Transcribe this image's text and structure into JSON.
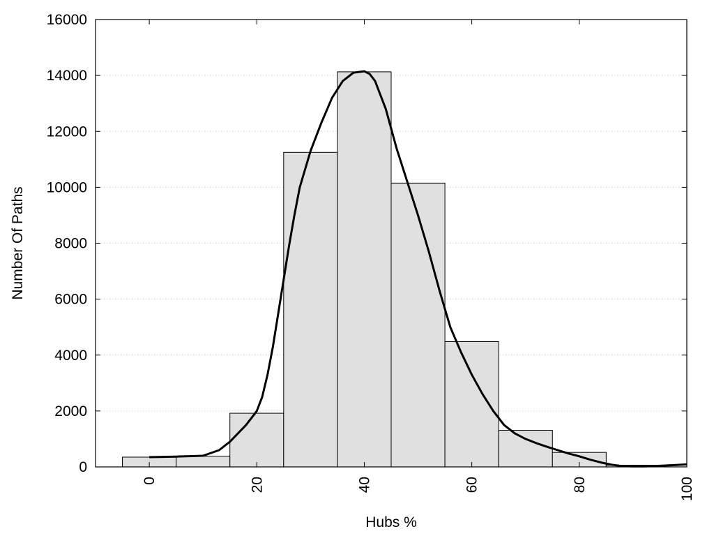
{
  "chart_data": {
    "type": "bar",
    "title": "",
    "xlabel": "Hubs %",
    "ylabel": "Number Of Paths",
    "xlim": [
      -10,
      100
    ],
    "ylim": [
      0,
      16000
    ],
    "x_ticks": [
      0,
      20,
      40,
      60,
      80,
      100
    ],
    "y_ticks": [
      0,
      2000,
      4000,
      6000,
      8000,
      10000,
      12000,
      14000,
      16000
    ],
    "grid": "horizontal-dotted",
    "bar_width": 10,
    "bars": [
      {
        "x": 0,
        "value": 350
      },
      {
        "x": 10,
        "value": 380
      },
      {
        "x": 20,
        "value": 1920
      },
      {
        "x": 30,
        "value": 11250
      },
      {
        "x": 40,
        "value": 14130
      },
      {
        "x": 50,
        "value": 10150
      },
      {
        "x": 60,
        "value": 4480
      },
      {
        "x": 70,
        "value": 1310
      },
      {
        "x": 80,
        "value": 520
      },
      {
        "x": 90,
        "value": 60
      }
    ],
    "curve": {
      "x": [
        0,
        5,
        10,
        13,
        15,
        18,
        20,
        21,
        22,
        23,
        24,
        25,
        26,
        27,
        28,
        30,
        32,
        34,
        36,
        38,
        40,
        41,
        42,
        44,
        46,
        48,
        50,
        52,
        54,
        56,
        58,
        60,
        62,
        64,
        66,
        68,
        70,
        72,
        74,
        76,
        78,
        80,
        82,
        84,
        86,
        88,
        90,
        92,
        94,
        96,
        98,
        100
      ],
      "y": [
        350,
        370,
        400,
        600,
        900,
        1500,
        2000,
        2500,
        3300,
        4300,
        5500,
        6700,
        7900,
        9000,
        10000,
        11300,
        12300,
        13200,
        13800,
        14100,
        14150,
        14050,
        13800,
        12800,
        11400,
        10200,
        9000,
        7700,
        6300,
        5000,
        4100,
        3300,
        2600,
        2000,
        1500,
        1200,
        1000,
        850,
        720,
        600,
        480,
        380,
        260,
        160,
        80,
        30,
        20,
        20,
        30,
        50,
        70,
        90
      ]
    },
    "colors": {
      "bar_fill": "#e0e0e0",
      "bar_stroke": "#000000",
      "curve": "#000000"
    }
  }
}
